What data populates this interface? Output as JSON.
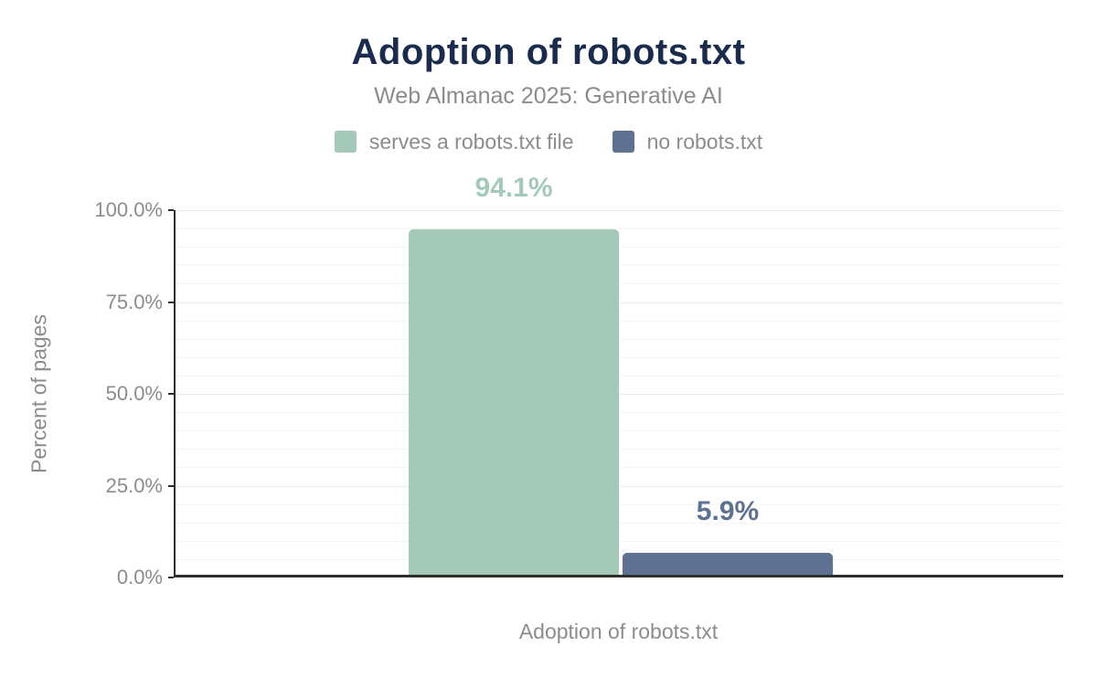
{
  "header": {
    "title": "Adoption of robots.txt",
    "subtitle": "Web Almanac 2025: Generative AI"
  },
  "chart_data": {
    "type": "bar",
    "title": "Adoption of robots.txt",
    "subtitle": "Web Almanac 2025: Generative AI",
    "xlabel": "Adoption of robots.txt",
    "ylabel": "Percent of pages",
    "ylim": [
      0,
      100
    ],
    "ytick_interval": 25,
    "ytick_labels": [
      "0.0%",
      "25.0%",
      "50.0%",
      "75.0%",
      "100.0%"
    ],
    "minor_grid_interval": 5,
    "grid": "horizontal",
    "legend_position": "top",
    "categories": [
      "Adoption of robots.txt"
    ],
    "series": [
      {
        "name": "serves a robots.txt file",
        "value": 94.1,
        "label": "94.1%",
        "color": "#a5c9b8"
      },
      {
        "name": "no robots.txt",
        "value": 5.9,
        "label": "5.9%",
        "color": "#5f7190"
      }
    ]
  },
  "colors": {
    "title": "#1b2b4b",
    "secondary_text": "#8c8c8c",
    "axis": "#2d2d2d",
    "grid_minor": "#f5f5f5",
    "grid_major": "#ebebeb",
    "background": "#ffffff"
  }
}
